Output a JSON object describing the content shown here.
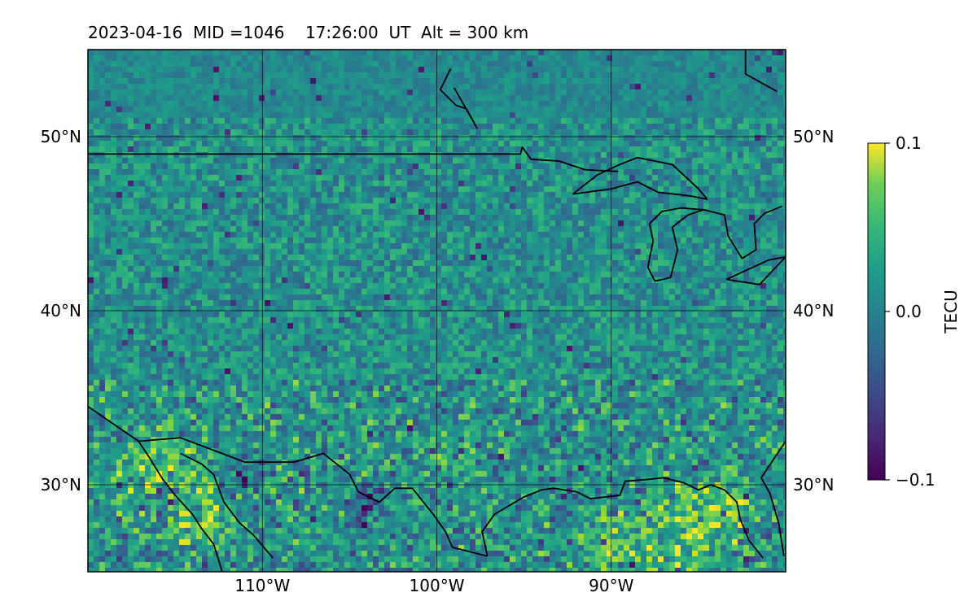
{
  "title": "2023-04-16  MID =1046    17:26:00  UT  Alt = 300 km",
  "map": {
    "lon_range": [
      -120,
      -80
    ],
    "lat_range": [
      25,
      55
    ],
    "lon_ticks": [
      {
        "value": -110,
        "label": "110°W"
      },
      {
        "value": -100,
        "label": "100°W"
      },
      {
        "value": -90,
        "label": "90°W"
      }
    ],
    "lat_ticks": [
      {
        "value": 30,
        "label": "30°N"
      },
      {
        "value": 40,
        "label": "40°N"
      },
      {
        "value": 50,
        "label": "50°N"
      }
    ],
    "colormap": "viridis",
    "coastlines": true,
    "gridlines": true
  },
  "colorbar": {
    "label": "TECU",
    "min": -0.1,
    "max": 0.1,
    "ticks": [
      {
        "value": 0.1,
        "label": "0.1"
      },
      {
        "value": 0.0,
        "label": "0.0"
      },
      {
        "value": -0.1,
        "label": "−0.1"
      }
    ]
  },
  "borders": {
    "us_canada": [
      [
        -120,
        49
      ],
      [
        -95.2,
        49
      ],
      [
        -95.1,
        49.4
      ],
      [
        -94.6,
        48.7
      ],
      [
        -93,
        48.6
      ],
      [
        -91.5,
        48.1
      ],
      [
        -89.6,
        48
      ]
    ],
    "mexico": [
      [
        -120,
        34.5
      ],
      [
        -117.1,
        32.5
      ],
      [
        -114.7,
        32.7
      ],
      [
        -111,
        31.3
      ],
      [
        -108.2,
        31.3
      ],
      [
        -106.5,
        31.8
      ],
      [
        -105,
        30.6
      ],
      [
        -104.5,
        29.6
      ],
      [
        -103.3,
        29.0
      ],
      [
        -102.4,
        29.8
      ],
      [
        -101.4,
        29.8
      ],
      [
        -100.2,
        28.3
      ],
      [
        -99.5,
        27.3
      ],
      [
        -99.1,
        26.4
      ],
      [
        -97.1,
        25.9
      ]
    ],
    "gulf_coast": [
      [
        -97.1,
        25.9
      ],
      [
        -97.4,
        27.3
      ],
      [
        -96.7,
        28.3
      ],
      [
        -95,
        29.3
      ],
      [
        -94,
        29.7
      ],
      [
        -93.3,
        29.8
      ],
      [
        -92,
        29.6
      ],
      [
        -91.2,
        29.2
      ],
      [
        -90.3,
        29.3
      ],
      [
        -89.5,
        29.4
      ],
      [
        -89.2,
        30.2
      ],
      [
        -88,
        30.3
      ],
      [
        -87,
        30.4
      ],
      [
        -85.8,
        30.1
      ],
      [
        -85,
        29.7
      ],
      [
        -84.3,
        30.0
      ],
      [
        -83.5,
        29.7
      ],
      [
        -82.8,
        29.0
      ],
      [
        -82.6,
        28.0
      ],
      [
        -82.1,
        26.8
      ],
      [
        -81.3,
        25.8
      ]
    ],
    "florida_east": [
      [
        -80.1,
        25.9
      ],
      [
        -80.4,
        27.8
      ],
      [
        -80.9,
        29.5
      ],
      [
        -81.4,
        30.4
      ],
      [
        -80,
        32.5
      ]
    ],
    "baja": [
      [
        -117.1,
        32.5
      ],
      [
        -116.5,
        31.6
      ],
      [
        -115.7,
        30.3
      ],
      [
        -115.0,
        29.4
      ],
      [
        -114,
        28.3
      ],
      [
        -113.5,
        27.5
      ],
      [
        -112.8,
        26.6
      ],
      [
        -112.3,
        25.0
      ]
    ],
    "sonora": [
      [
        -114.7,
        31.8
      ],
      [
        -113.5,
        31.2
      ],
      [
        -112.8,
        30.6
      ],
      [
        -112.2,
        29.0
      ],
      [
        -111.3,
        27.8
      ],
      [
        -110.5,
        27.1
      ],
      [
        -109.4,
        25.8
      ]
    ],
    "hudson": [
      [
        -99,
        52.8
      ],
      [
        -97.7,
        50.5
      ],
      [
        -98.3,
        51.6
      ],
      [
        -98.9,
        51.8
      ],
      [
        -99.8,
        52.7
      ],
      [
        -99.2,
        53.9
      ]
    ],
    "labrador": [
      [
        -82.3,
        55
      ],
      [
        -82.3,
        53.6
      ],
      [
        -80.5,
        52.6
      ]
    ],
    "lake_superior": [
      [
        -92.2,
        46.7
      ],
      [
        -90,
        47.0
      ],
      [
        -88.5,
        47.4
      ],
      [
        -87.3,
        46.8
      ],
      [
        -85.5,
        46.6
      ],
      [
        -84.5,
        46.4
      ],
      [
        -85,
        47.0
      ],
      [
        -86.5,
        48.4
      ],
      [
        -88.5,
        48.8
      ],
      [
        -89.5,
        48.4
      ],
      [
        -90.8,
        47.8
      ],
      [
        -92.2,
        46.7
      ]
    ],
    "lake_michigan": [
      [
        -87.8,
        45.0
      ],
      [
        -87.6,
        44.0
      ],
      [
        -87.9,
        42.5
      ],
      [
        -87.5,
        41.7
      ],
      [
        -86.6,
        41.9
      ],
      [
        -86.2,
        43.5
      ],
      [
        -86.5,
        44.8
      ],
      [
        -85.6,
        45.5
      ],
      [
        -84.7,
        45.8
      ],
      [
        -86,
        45.9
      ],
      [
        -87.1,
        45.7
      ],
      [
        -87.8,
        45.0
      ]
    ],
    "lake_huron": [
      [
        -84.7,
        45.8
      ],
      [
        -83.5,
        45.5
      ],
      [
        -83.3,
        44.3
      ],
      [
        -82.5,
        43.0
      ],
      [
        -81.7,
        43.5
      ],
      [
        -81.8,
        45.0
      ],
      [
        -81.2,
        45.6
      ],
      [
        -80.2,
        46.0
      ]
    ],
    "lake_erie": [
      [
        -83.4,
        41.8
      ],
      [
        -81,
        42.9
      ],
      [
        -80,
        43.1
      ],
      [
        -81.5,
        41.5
      ],
      [
        -83.4,
        41.8
      ]
    ]
  }
}
